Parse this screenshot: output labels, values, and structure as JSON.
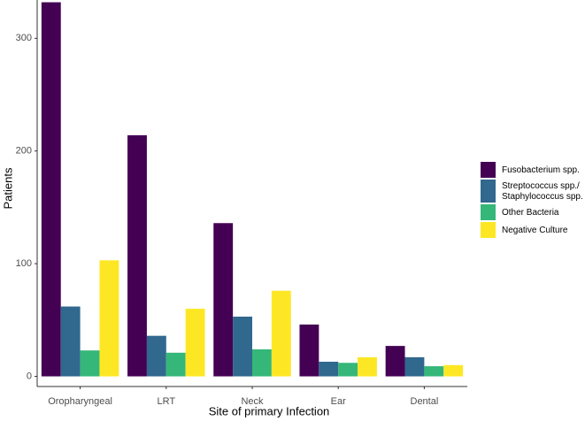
{
  "chart_data": {
    "type": "bar",
    "x_label": "Site of primary Infection",
    "y_label": "Patients",
    "categories": [
      "Oropharyngeal",
      "LRT",
      "Neck",
      "Ear",
      "Dental"
    ],
    "series": [
      {
        "name": "Fusobacterium spp.",
        "color": "#440154",
        "values": [
          332,
          214,
          136,
          46,
          27
        ]
      },
      {
        "name": "Streptococcus spp./\nStaphylococcus spp.",
        "color": "#31688e",
        "values": [
          62,
          36,
          53,
          13,
          17
        ]
      },
      {
        "name": "Other Bacteria",
        "color": "#35b779",
        "values": [
          23,
          21,
          24,
          12,
          9
        ]
      },
      {
        "name": "Negative Culture",
        "color": "#fde725",
        "values": [
          103,
          60,
          76,
          17,
          10
        ]
      }
    ],
    "ylim": [
      -9,
      334
    ],
    "yticks": [
      0,
      100,
      200,
      300
    ]
  }
}
